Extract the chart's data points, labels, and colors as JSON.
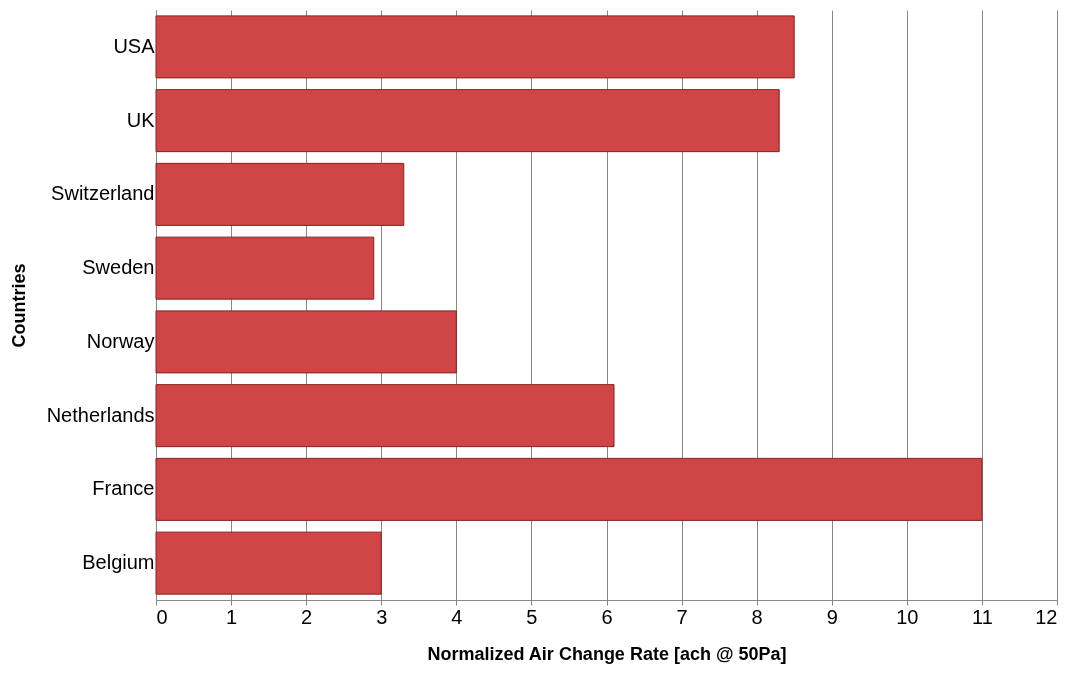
{
  "chart_data": {
    "type": "bar",
    "orientation": "horizontal",
    "categories": [
      "USA",
      "UK",
      "Switzerland",
      "Sweden",
      "Norway",
      "Netherlands",
      "France",
      "Belgium"
    ],
    "values": [
      8.5,
      8.3,
      3.3,
      2.9,
      4.0,
      6.1,
      11.0,
      3.0
    ],
    "color": "#d04545",
    "xlabel": "Normalized Air Change Rate [ach @ 50Pa]",
    "ylabel": "Countries",
    "xlim": [
      0,
      12
    ],
    "xticks": [
      0,
      1,
      2,
      3,
      4,
      5,
      6,
      7,
      8,
      9,
      10,
      11,
      12
    ],
    "grid": "x"
  }
}
